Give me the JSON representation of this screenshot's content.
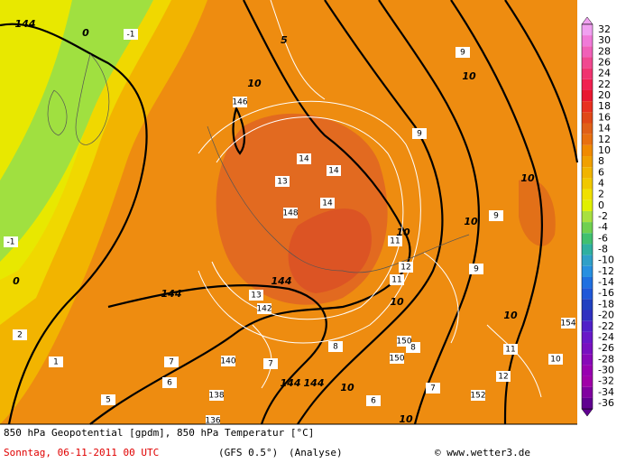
{
  "map": {
    "colorbar": {
      "labels": [
        32,
        30,
        28,
        26,
        24,
        22,
        20,
        18,
        16,
        14,
        12,
        10,
        8,
        6,
        4,
        2,
        0,
        -2,
        -4,
        -6,
        -8,
        -10,
        -12,
        -14,
        -16,
        -18,
        -20,
        -22,
        -24,
        -26,
        -28,
        -30,
        -32,
        -34,
        -36
      ],
      "colors": [
        "#f0a0f0",
        "#f07ad8",
        "#f060b8",
        "#f04890",
        "#f03470",
        "#f02050",
        "#e81830",
        "#e83020",
        "#e04818",
        "#e06018",
        "#e87010",
        "#f08a00",
        "#f0a000",
        "#f0b400",
        "#f0c800",
        "#f0e000",
        "#e0f000",
        "#a8e040",
        "#70d050",
        "#40c070",
        "#30b0a0",
        "#30a0c8",
        "#2890e0",
        "#2070e0",
        "#2058d8",
        "#2040c0",
        "#3030c0",
        "#5020c8",
        "#6818c8",
        "#7810c0",
        "#8808b8",
        "#9800b0",
        "#a000a8",
        "#8000a0",
        "#600090"
      ]
    },
    "contour_labels": [
      144,
      144,
      144,
      144,
      144,
      10,
      10,
      10,
      10,
      10,
      10,
      10,
      0,
      0,
      5,
      5,
      10,
      10
    ],
    "temperature_labels": [
      13,
      14,
      14,
      14,
      13,
      11,
      11,
      12,
      9,
      9,
      9,
      8,
      7,
      7,
      6,
      5,
      2,
      1,
      -1,
      -1,
      11,
      12,
      10,
      9,
      8,
      7,
      6
    ],
    "height_labels": [
      146,
      148,
      150,
      142,
      140,
      138,
      136,
      150,
      152,
      154
    ],
    "footer": {
      "line1": "850 hPa Geopotential [gpdm], 850 hPa Temperatur [°C]",
      "date": "Sonntag, 06-11-2011  00 UTC",
      "model": "(GFS 0.5°)",
      "run": "(Analyse)",
      "credit": "© www.wetter3.de"
    }
  }
}
